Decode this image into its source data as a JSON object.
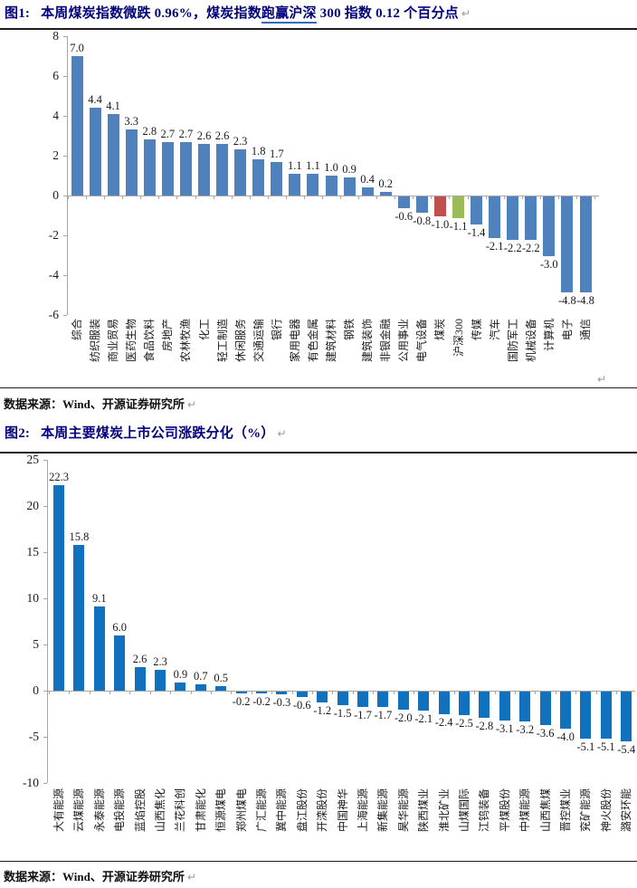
{
  "glyphs": {
    "pilcrow": "↵"
  },
  "figure1": {
    "label": "图1:",
    "title_pre": "本周煤炭指数微跌 0.96%，煤炭指数",
    "title_underline": "跑赢沪深",
    "title_post": " 300 指数 0.12 个百分点",
    "source": "数据来源：Wind、开源证券研究所"
  },
  "figure2": {
    "label": "图2:",
    "title": "本周主要煤炭上市公司涨跌分化（%）",
    "source": "数据来源：Wind、开源证券研究所"
  },
  "chart_data": [
    {
      "type": "bar",
      "title": "本周煤炭指数微跌0.96%，煤炭指数跑赢沪深300指数0.12个百分点",
      "categories": [
        "综合",
        "纺织服装",
        "商业贸易",
        "医药生物",
        "食品饮料",
        "房地产",
        "农林牧渔",
        "化工",
        "轻工制造",
        "休闲服务",
        "交通运输",
        "银行",
        "家用电器",
        "有色金属",
        "建筑材料",
        "钢铁",
        "建筑装饰",
        "非银金融",
        "公用事业",
        "电气设备",
        "煤炭",
        "沪深300",
        "传媒",
        "汽车",
        "国防军工",
        "机械设备",
        "计算机",
        "电子",
        "通信"
      ],
      "values": [
        7.0,
        4.4,
        4.1,
        3.3,
        2.8,
        2.7,
        2.7,
        2.6,
        2.6,
        2.3,
        1.8,
        1.7,
        1.1,
        1.1,
        1.0,
        0.9,
        0.4,
        0.2,
        -0.6,
        -0.8,
        -1.0,
        -1.1,
        -1.4,
        -2.1,
        -2.2,
        -2.2,
        -3.0,
        -4.8,
        -4.8
      ],
      "unit": "%",
      "bar_color_default": "#4F81BD",
      "highlights": {
        "煤炭": "#C0504D",
        "沪深300": "#9BBB59"
      },
      "ylim": [
        -6,
        8
      ],
      "ytick_step": 2,
      "yticks": [
        8,
        6,
        4,
        2,
        0,
        -2,
        -4,
        -6
      ],
      "grid": false,
      "legend": null,
      "value_labels": true
    },
    {
      "type": "bar",
      "title": "本周主要煤炭上市公司涨跌分化（%）",
      "categories": [
        "大有能源",
        "云煤能源",
        "永泰能源",
        "电投能源",
        "蓝焰控股",
        "山西焦化",
        "兰花科创",
        "甘肃能化",
        "恒源煤电",
        "郑州煤电",
        "广汇能源",
        "冀中能源",
        "盘江股份",
        "开滦股份",
        "中国神华",
        "上海能源",
        "新集能源",
        "昊华能源",
        "陕西煤业",
        "淮北矿业",
        "山煤国际",
        "江钨装备",
        "平煤股份",
        "中煤能源",
        "山西焦煤",
        "晋控煤业",
        "兖矿能源",
        "神火股份",
        "潞安环能"
      ],
      "values": [
        22.3,
        15.8,
        9.1,
        6.0,
        2.6,
        2.3,
        0.9,
        0.7,
        0.5,
        -0.2,
        -0.2,
        -0.3,
        -0.6,
        -1.2,
        -1.5,
        -1.7,
        -1.7,
        -2.0,
        -2.1,
        -2.4,
        -2.5,
        -2.8,
        -3.1,
        -3.2,
        -3.6,
        -4.0,
        -5.1,
        -5.1,
        -5.4
      ],
      "unit": "%",
      "bar_color_default": "#1072BE",
      "highlights": {},
      "ylim": [
        -10,
        25
      ],
      "ytick_step": 5,
      "yticks": [
        25,
        20,
        15,
        10,
        5,
        0,
        -5,
        -10
      ],
      "grid": false,
      "legend": null,
      "value_labels": true
    }
  ]
}
